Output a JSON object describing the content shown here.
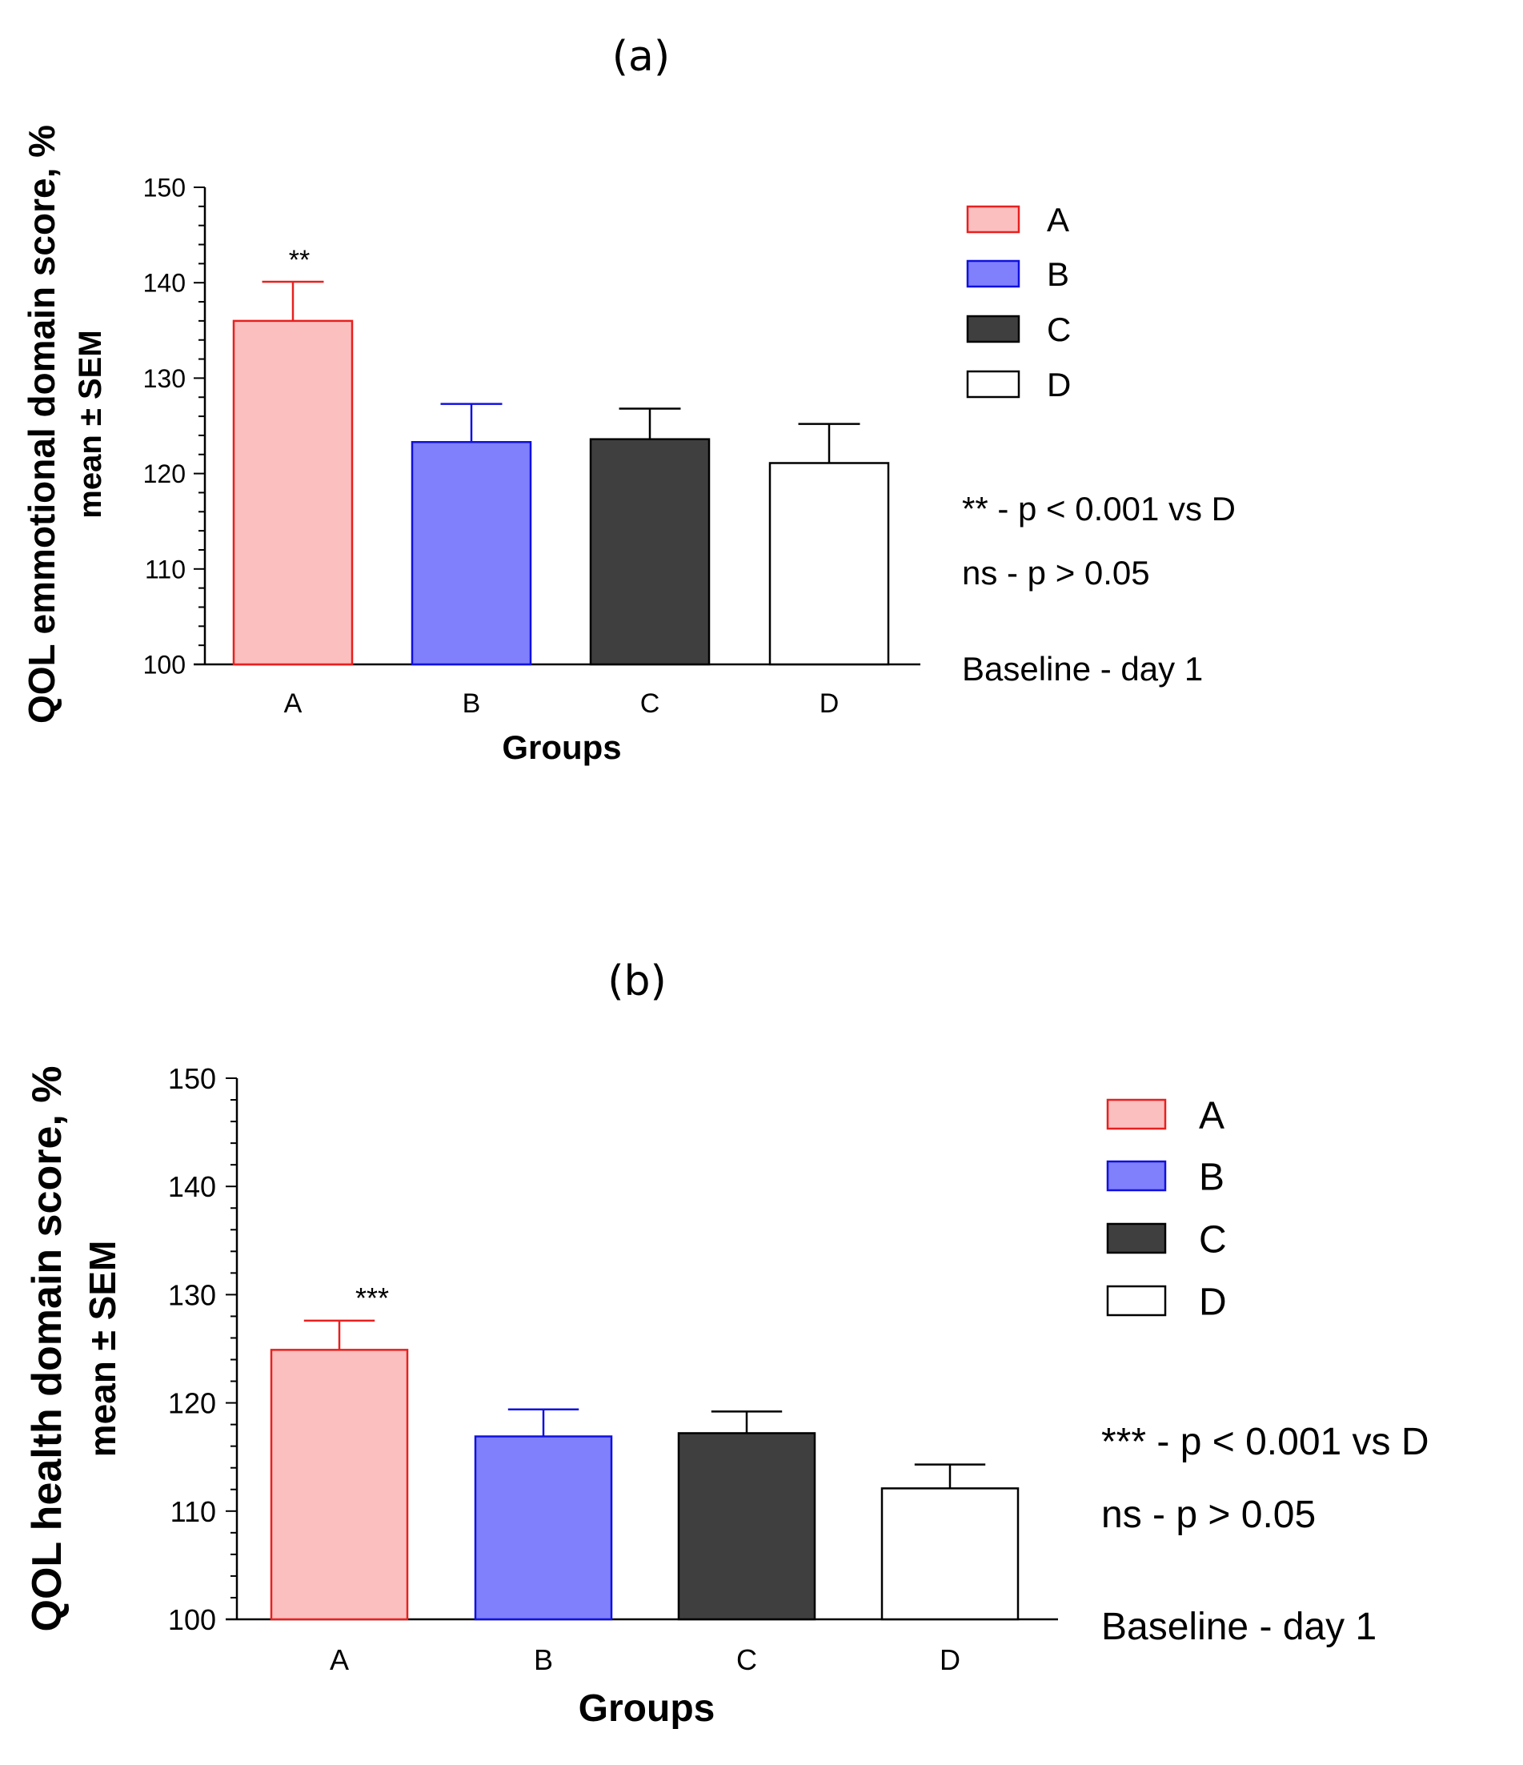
{
  "chart_data": [
    {
      "type": "bar",
      "panel_label": "(a)",
      "title": "(a)",
      "categories": [
        "A",
        "B",
        "C",
        "D"
      ],
      "values": [
        136.0,
        123.3,
        123.6,
        121.1
      ],
      "errors": [
        4.1,
        4.0,
        3.2,
        4.1
      ],
      "significance": [
        "**",
        "",
        "",
        ""
      ],
      "colors": {
        "fill": [
          "#fcbfbf",
          "#8080fc",
          "#3f3f3f",
          "#ffffff"
        ],
        "stroke": [
          "#e8201f",
          "#1010e0",
          "#000000",
          "#000000"
        ]
      },
      "xlabel": "Groups",
      "ylabel_line1": "QOL emmotional domain score, %",
      "ylabel_line2": "mean ± SEM",
      "ylim": [
        100,
        150
      ],
      "yticks": [
        100,
        110,
        120,
        130,
        140,
        150
      ],
      "legend": [
        "A",
        "B",
        "C",
        "D"
      ],
      "legend_position": "top-right",
      "annotations": [
        "** -  p < 0.001 vs D",
        "ns -  p > 0.05",
        "Baseline - day 1"
      ]
    },
    {
      "type": "bar",
      "panel_label": "(b)",
      "title": "(b)",
      "categories": [
        "A",
        "B",
        "C",
        "D"
      ],
      "values": [
        124.9,
        116.9,
        117.2,
        112.1
      ],
      "errors": [
        2.7,
        2.5,
        2.0,
        2.2
      ],
      "significance": [
        "***",
        "",
        "",
        ""
      ],
      "colors": {
        "fill": [
          "#fcbfbf",
          "#8080fc",
          "#3f3f3f",
          "#ffffff"
        ],
        "stroke": [
          "#e8201f",
          "#1010e0",
          "#000000",
          "#000000"
        ]
      },
      "xlabel": "Groups",
      "ylabel_line1": "QOL health domain score, %",
      "ylabel_line2": "mean ± SEM",
      "ylim": [
        100,
        150
      ],
      "yticks": [
        100,
        110,
        120,
        130,
        140,
        150
      ],
      "legend": [
        "A",
        "B",
        "C",
        "D"
      ],
      "legend_position": "top-right",
      "annotations": [
        "*** -  p < 0.001 vs D",
        "ns -  p > 0.05",
        "Baseline - day 1"
      ]
    }
  ]
}
